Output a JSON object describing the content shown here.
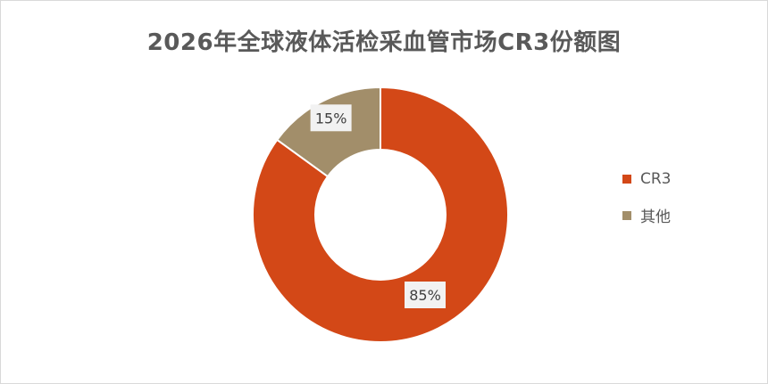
{
  "chart_data": {
    "type": "pie",
    "variant": "donut",
    "title": "2026年全球液体活检采血管市场CR3份额图",
    "categories": [
      "CR3",
      "其他"
    ],
    "values": [
      85,
      15
    ],
    "data_labels": [
      "85%",
      "15%"
    ],
    "colors": [
      "#D34817",
      "#A28E6A"
    ],
    "legend_placement": "right",
    "start_angle": "12 o'clock, clockwise"
  }
}
